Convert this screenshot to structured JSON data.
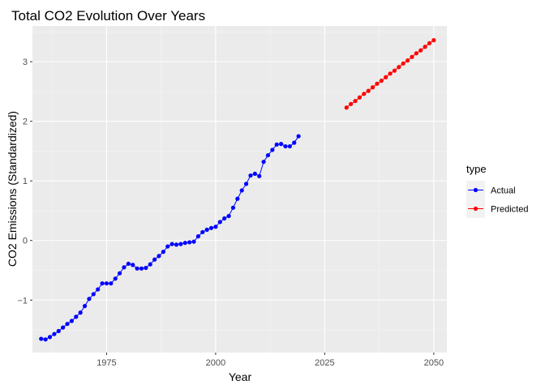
{
  "chart_data": {
    "type": "line",
    "title": "Total CO2 Evolution Over Years",
    "xlabel": "Year",
    "ylabel": "CO2 Emissions (Standardized)",
    "xlim": [
      1958,
      2053
    ],
    "ylim": [
      -1.88,
      3.6
    ],
    "x_ticks": [
      1975,
      2000,
      2025,
      2050
    ],
    "y_ticks": [
      -1,
      0,
      1,
      2,
      3
    ],
    "grid": true,
    "legend_title": "type",
    "legend_position": "right",
    "series": [
      {
        "name": "Actual",
        "color": "#0000ff",
        "x": [
          1960,
          1961,
          1962,
          1963,
          1964,
          1965,
          1966,
          1967,
          1968,
          1969,
          1970,
          1971,
          1972,
          1973,
          1974,
          1975,
          1976,
          1977,
          1978,
          1979,
          1980,
          1981,
          1982,
          1983,
          1984,
          1985,
          1986,
          1987,
          1988,
          1989,
          1990,
          1991,
          1992,
          1993,
          1994,
          1995,
          1996,
          1997,
          1998,
          1999,
          2000,
          2001,
          2002,
          2003,
          2004,
          2005,
          2006,
          2007,
          2008,
          2009,
          2010,
          2011,
          2012,
          2013,
          2014,
          2015,
          2016,
          2017,
          2018,
          2019
        ],
        "y": [
          -1.65,
          -1.66,
          -1.62,
          -1.57,
          -1.52,
          -1.46,
          -1.4,
          -1.35,
          -1.28,
          -1.21,
          -1.1,
          -0.98,
          -0.9,
          -0.82,
          -0.72,
          -0.72,
          -0.72,
          -0.64,
          -0.55,
          -0.45,
          -0.39,
          -0.41,
          -0.47,
          -0.47,
          -0.46,
          -0.4,
          -0.32,
          -0.26,
          -0.19,
          -0.1,
          -0.06,
          -0.07,
          -0.06,
          -0.04,
          -0.03,
          -0.02,
          0.07,
          0.14,
          0.18,
          0.21,
          0.23,
          0.31,
          0.37,
          0.41,
          0.55,
          0.7,
          0.84,
          0.95,
          1.09,
          1.12,
          1.08,
          1.32,
          1.43,
          1.52,
          1.61,
          1.62,
          1.58,
          1.58,
          1.64,
          1.75
        ]
      },
      {
        "name": "Predicted",
        "color": "#ff0000",
        "x": [
          2030,
          2031,
          2032,
          2033,
          2034,
          2035,
          2036,
          2037,
          2038,
          2039,
          2040,
          2041,
          2042,
          2043,
          2044,
          2045,
          2046,
          2047,
          2048,
          2049,
          2050
        ],
        "y": [
          2.23,
          2.29,
          2.34,
          2.4,
          2.46,
          2.51,
          2.57,
          2.63,
          2.68,
          2.74,
          2.8,
          2.85,
          2.91,
          2.97,
          3.02,
          3.08,
          3.14,
          3.19,
          3.25,
          3.31,
          3.36
        ]
      }
    ]
  }
}
